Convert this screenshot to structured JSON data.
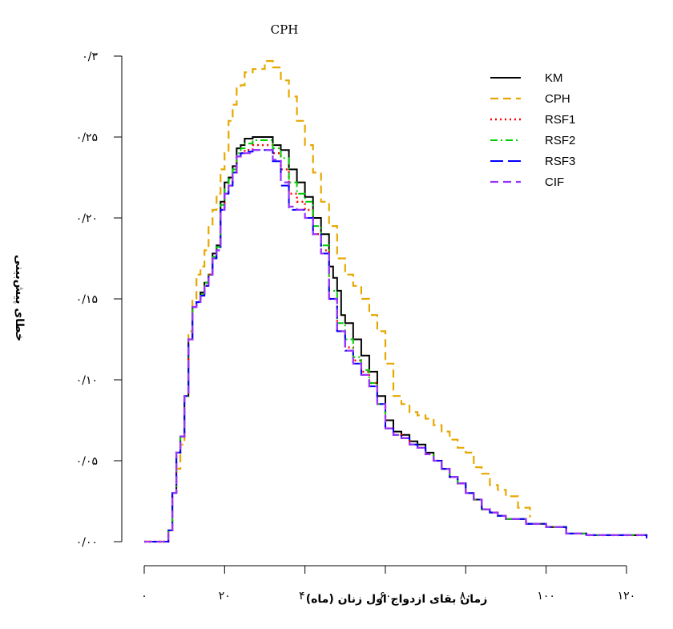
{
  "chart_data": {
    "type": "line",
    "title": "CPH",
    "xlabel": "زمان بقای ازدواج اول زنان (ماه)",
    "ylabel": "خطای پیش‌بینی",
    "xlim": [
      0,
      125
    ],
    "ylim": [
      0,
      0.3
    ],
    "x_ticks": [
      0,
      20,
      40,
      60,
      80,
      100,
      120
    ],
    "x_tick_labels": [
      "۰",
      "۲۰",
      "۴۰",
      "۶۰",
      "۸۰",
      "۱۰۰",
      "۱۲۰"
    ],
    "y_ticks": [
      0,
      0.05,
      0.1,
      0.15,
      0.2,
      0.25,
      0.3
    ],
    "y_tick_labels": [
      "۰/۰۰",
      "۰/۰۵",
      "۰/۱۰",
      "۰/۱۵",
      "۰/۲۰",
      "۰/۲۵",
      "۰/۳"
    ],
    "grid": false,
    "legend_position": "top-right",
    "series": [
      {
        "name": "KM",
        "color": "#000000",
        "dash": "solid",
        "x": [
          0,
          5,
          6,
          7,
          8,
          9,
          10,
          11,
          12,
          13,
          14,
          15,
          16,
          17,
          18,
          19,
          20,
          21,
          22,
          23,
          24,
          25,
          27,
          30,
          32,
          34,
          36,
          38,
          40,
          42,
          44,
          46,
          47,
          48,
          49,
          50,
          52,
          54,
          56,
          58,
          60,
          62,
          64,
          66,
          68,
          70,
          72,
          74,
          76,
          78,
          80,
          82,
          84,
          86,
          88,
          90,
          95,
          100,
          105,
          110,
          115,
          120,
          125
        ],
        "y": [
          0,
          0,
          0.007,
          0.03,
          0.055,
          0.065,
          0.09,
          0.125,
          0.145,
          0.148,
          0.154,
          0.16,
          0.165,
          0.178,
          0.183,
          0.21,
          0.222,
          0.225,
          0.232,
          0.243,
          0.245,
          0.249,
          0.25,
          0.25,
          0.245,
          0.242,
          0.23,
          0.222,
          0.213,
          0.2,
          0.19,
          0.17,
          0.163,
          0.155,
          0.14,
          0.135,
          0.125,
          0.115,
          0.105,
          0.09,
          0.075,
          0.068,
          0.066,
          0.062,
          0.06,
          0.055,
          0.05,
          0.045,
          0.04,
          0.036,
          0.03,
          0.026,
          0.02,
          0.018,
          0.016,
          0.014,
          0.011,
          0.009,
          0.005,
          0.004,
          0.004,
          0.004,
          0.002
        ]
      },
      {
        "name": "CPH",
        "color": "#e6a800",
        "dash": "dashed",
        "x": [
          0,
          5,
          6,
          7,
          8,
          9,
          10,
          11,
          12,
          13,
          14,
          15,
          16,
          17,
          18,
          19,
          20,
          21,
          22,
          23,
          24,
          25,
          27,
          30,
          32,
          34,
          36,
          38,
          40,
          42,
          44,
          46,
          48,
          50,
          52,
          54,
          56,
          58,
          60,
          62,
          64,
          66,
          68,
          70,
          72,
          74,
          76,
          78,
          80,
          82,
          84,
          86,
          88,
          90,
          93,
          96
        ],
        "y": [
          0,
          0,
          0.007,
          0.03,
          0.045,
          0.06,
          0.09,
          0.13,
          0.15,
          0.165,
          0.17,
          0.18,
          0.195,
          0.205,
          0.215,
          0.23,
          0.24,
          0.26,
          0.27,
          0.28,
          0.282,
          0.29,
          0.292,
          0.297,
          0.293,
          0.285,
          0.275,
          0.26,
          0.245,
          0.228,
          0.21,
          0.195,
          0.175,
          0.165,
          0.158,
          0.15,
          0.14,
          0.13,
          0.11,
          0.09,
          0.085,
          0.08,
          0.078,
          0.076,
          0.072,
          0.068,
          0.063,
          0.058,
          0.055,
          0.046,
          0.042,
          0.035,
          0.032,
          0.028,
          0.021,
          0.015
        ]
      },
      {
        "name": "RSF1",
        "color": "#ff0000",
        "dash": "dotted",
        "x": [
          0,
          5,
          6,
          7,
          8,
          9,
          10,
          11,
          12,
          13,
          14,
          15,
          16,
          17,
          18,
          19,
          20,
          21,
          22,
          23,
          24,
          25,
          27,
          30,
          32,
          34,
          36,
          38,
          40,
          42,
          44,
          46,
          48,
          50,
          52,
          54,
          56,
          58,
          60,
          62,
          64,
          66,
          68,
          70,
          72,
          74,
          76,
          78,
          80,
          82,
          84,
          86,
          88,
          90,
          95,
          100,
          105,
          110,
          115,
          120,
          125
        ],
        "y": [
          0,
          0,
          0.007,
          0.03,
          0.055,
          0.065,
          0.09,
          0.125,
          0.145,
          0.148,
          0.152,
          0.158,
          0.165,
          0.175,
          0.18,
          0.205,
          0.215,
          0.22,
          0.228,
          0.238,
          0.24,
          0.242,
          0.245,
          0.245,
          0.24,
          0.23,
          0.215,
          0.21,
          0.205,
          0.19,
          0.18,
          0.15,
          0.13,
          0.12,
          0.112,
          0.105,
          0.098,
          0.085,
          0.07,
          0.066,
          0.064,
          0.06,
          0.058,
          0.054,
          0.05,
          0.045,
          0.04,
          0.036,
          0.03,
          0.026,
          0.02,
          0.018,
          0.016,
          0.014,
          0.011,
          0.009,
          0.005,
          0.004,
          0.004,
          0.004,
          0.002
        ]
      },
      {
        "name": "RSF2",
        "color": "#00cc00",
        "dash": "dashdot",
        "x": [
          0,
          5,
          6,
          7,
          8,
          9,
          10,
          11,
          12,
          13,
          14,
          15,
          16,
          17,
          18,
          19,
          20,
          21,
          22,
          23,
          24,
          25,
          27,
          30,
          32,
          34,
          36,
          38,
          40,
          42,
          44,
          46,
          48,
          50,
          52,
          54,
          56,
          58,
          60,
          62,
          64,
          66,
          68,
          70,
          72,
          74,
          76,
          78,
          80,
          82,
          84,
          86,
          88,
          90,
          95,
          100,
          105,
          110,
          115,
          120,
          125
        ],
        "y": [
          0,
          0,
          0.007,
          0.03,
          0.055,
          0.065,
          0.09,
          0.125,
          0.145,
          0.148,
          0.153,
          0.16,
          0.165,
          0.176,
          0.182,
          0.208,
          0.218,
          0.224,
          0.23,
          0.24,
          0.243,
          0.246,
          0.248,
          0.248,
          0.243,
          0.237,
          0.222,
          0.215,
          0.21,
          0.195,
          0.183,
          0.155,
          0.135,
          0.125,
          0.114,
          0.106,
          0.098,
          0.085,
          0.07,
          0.066,
          0.064,
          0.06,
          0.058,
          0.054,
          0.05,
          0.045,
          0.04,
          0.036,
          0.03,
          0.026,
          0.02,
          0.018,
          0.016,
          0.014,
          0.011,
          0.009,
          0.005,
          0.004,
          0.004,
          0.004,
          0.002
        ]
      },
      {
        "name": "RSF3",
        "color": "#0000ff",
        "dash": "longdash",
        "x": [
          0,
          5,
          6,
          7,
          8,
          9,
          10,
          11,
          12,
          13,
          14,
          15,
          16,
          17,
          18,
          19,
          20,
          21,
          22,
          23,
          24,
          25,
          27,
          30,
          32,
          34,
          36,
          38,
          40,
          42,
          44,
          46,
          48,
          50,
          52,
          54,
          56,
          58,
          60,
          62,
          64,
          66,
          68,
          70,
          72,
          74,
          76,
          78,
          80,
          82,
          84,
          86,
          88,
          90,
          95,
          100,
          105,
          110,
          115,
          120,
          125
        ],
        "y": [
          0,
          0,
          0.007,
          0.03,
          0.055,
          0.065,
          0.09,
          0.125,
          0.145,
          0.148,
          0.152,
          0.158,
          0.165,
          0.175,
          0.18,
          0.205,
          0.215,
          0.22,
          0.228,
          0.238,
          0.24,
          0.241,
          0.242,
          0.242,
          0.235,
          0.22,
          0.205,
          0.205,
          0.2,
          0.19,
          0.178,
          0.15,
          0.13,
          0.118,
          0.11,
          0.103,
          0.096,
          0.085,
          0.07,
          0.066,
          0.064,
          0.06,
          0.058,
          0.054,
          0.05,
          0.045,
          0.04,
          0.036,
          0.03,
          0.026,
          0.02,
          0.018,
          0.016,
          0.014,
          0.011,
          0.009,
          0.005,
          0.004,
          0.004,
          0.004,
          0.002
        ]
      },
      {
        "name": "CIF",
        "color": "#9933ff",
        "dash": "dashed",
        "x": [
          0,
          5,
          6,
          7,
          8,
          9,
          10,
          11,
          12,
          13,
          14,
          15,
          16,
          17,
          18,
          19,
          20,
          21,
          22,
          23,
          24,
          25,
          27,
          30,
          32,
          34,
          36,
          38,
          40,
          42,
          44,
          46,
          48,
          50,
          52,
          54,
          56,
          58,
          60,
          62,
          64,
          66,
          68,
          70,
          72,
          74,
          76,
          78,
          80,
          82,
          84,
          86,
          88,
          90,
          95,
          100,
          105,
          110,
          115,
          120,
          125
        ],
        "y": [
          0,
          0,
          0.007,
          0.03,
          0.055,
          0.065,
          0.09,
          0.125,
          0.145,
          0.148,
          0.152,
          0.158,
          0.165,
          0.175,
          0.18,
          0.205,
          0.215,
          0.22,
          0.228,
          0.238,
          0.24,
          0.24,
          0.242,
          0.242,
          0.236,
          0.222,
          0.207,
          0.205,
          0.2,
          0.19,
          0.178,
          0.15,
          0.13,
          0.118,
          0.11,
          0.103,
          0.096,
          0.085,
          0.07,
          0.066,
          0.064,
          0.06,
          0.058,
          0.054,
          0.05,
          0.045,
          0.04,
          0.036,
          0.03,
          0.026,
          0.02,
          0.018,
          0.016,
          0.014,
          0.011,
          0.009,
          0.005,
          0.004,
          0.004,
          0.004,
          0.002
        ]
      }
    ]
  }
}
